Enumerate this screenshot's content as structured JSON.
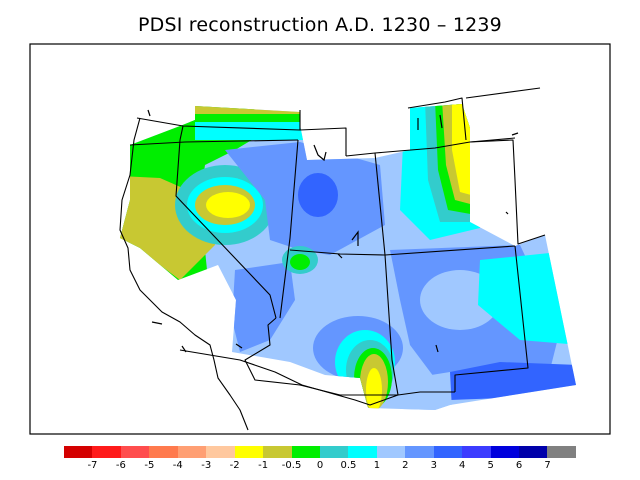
{
  "title": "PDSI reconstruction A.D. 1230 – 1239",
  "legend": {
    "colors": [
      "#d40000",
      "#ff1a1a",
      "#ff4d4d",
      "#ff7a4d",
      "#ff9f73",
      "#ffc89e",
      "#ffff00",
      "#c8c832",
      "#00ee00",
      "#33cccc",
      "#00ffff",
      "#a0c8ff",
      "#6496ff",
      "#3264ff",
      "#3c3cff",
      "#0000dd",
      "#0000aa",
      "#808080"
    ],
    "labels": [
      "-7",
      "-6",
      "-5",
      "-4",
      "-3",
      "-2",
      "-1",
      "-0.5",
      "0",
      "0.5",
      "1",
      "2",
      "3",
      "4",
      "5",
      "6",
      "7"
    ]
  },
  "palette": {
    "yellow": "#ffff00",
    "olive": "#c8c832",
    "green": "#00ee00",
    "teal": "#33cccc",
    "cyan": "#00ffff",
    "lightblue": "#a0c8ff",
    "midblue": "#6496ff",
    "blue": "#3264ff"
  }
}
